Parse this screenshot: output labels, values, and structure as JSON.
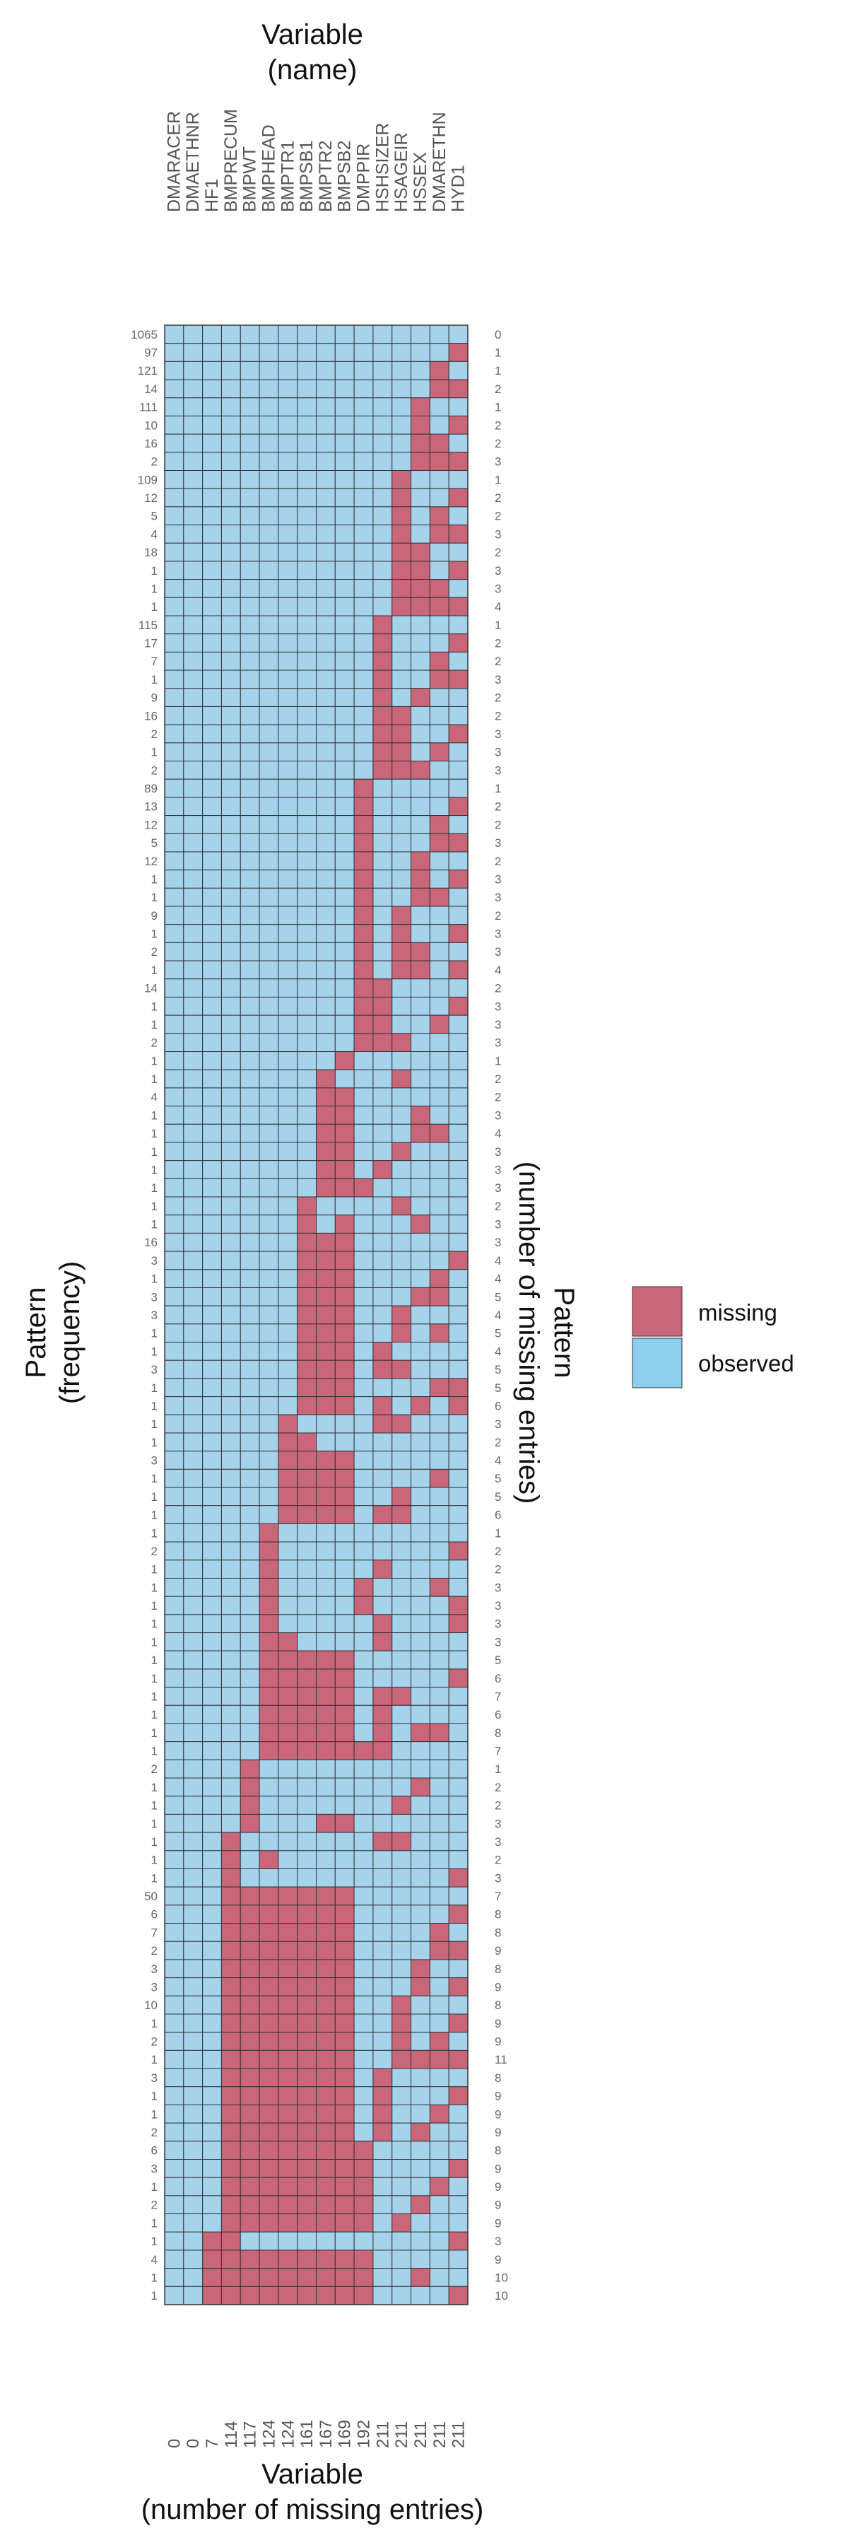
{
  "chart_data": {
    "type": "heatmap",
    "colors": {
      "missing": "#c9667a",
      "observed": "#a6d3ec",
      "grid": "#333333"
    },
    "top_axis": {
      "line1": "Variable",
      "line2": "(name)"
    },
    "bottom_axis": {
      "line1": "Variable",
      "line2": "(number of missing entries)"
    },
    "left_axis": {
      "line1": "Pattern",
      "line2": "(frequency)"
    },
    "right_axis": {
      "line1": "Pattern",
      "line2": "(number of missing entries)"
    },
    "legend": {
      "placement": "right",
      "items": [
        {
          "label": "missing",
          "color": "#c9667a"
        },
        {
          "label": "observed",
          "color": "#8ecff0"
        }
      ]
    },
    "variables": [
      "DMARACER",
      "DMAETHNR",
      "HF1",
      "BMPRECUM",
      "BMPWT",
      "BMPHEAD",
      "BMPTR1",
      "BMPSB1",
      "BMPTR2",
      "BMPSB2",
      "DMPPIR",
      "HSHSIZER",
      "HSAGEIR",
      "HSSEX",
      "DMARETHN",
      "HYD1"
    ],
    "missing_counts": [
      "0",
      "0",
      "7",
      "114",
      "117",
      "124",
      "124",
      "161",
      "167",
      "169",
      "192",
      "211",
      "211",
      "211",
      "211",
      "211"
    ],
    "patterns": [
      {
        "frequency": "1065",
        "missing": "0",
        "cells": "0000000000000000"
      },
      {
        "frequency": "97",
        "missing": "1",
        "cells": "0000000000000001"
      },
      {
        "frequency": "121",
        "missing": "1",
        "cells": "0000000000000010"
      },
      {
        "frequency": "14",
        "missing": "2",
        "cells": "0000000000000011"
      },
      {
        "frequency": "111",
        "missing": "1",
        "cells": "0000000000000100"
      },
      {
        "frequency": "10",
        "missing": "2",
        "cells": "0000000000000101"
      },
      {
        "frequency": "16",
        "missing": "2",
        "cells": "0000000000000110"
      },
      {
        "frequency": "2",
        "missing": "3",
        "cells": "0000000000000111"
      },
      {
        "frequency": "109",
        "missing": "1",
        "cells": "0000000000001000"
      },
      {
        "frequency": "12",
        "missing": "2",
        "cells": "0000000000001001"
      },
      {
        "frequency": "5",
        "missing": "2",
        "cells": "0000000000001010"
      },
      {
        "frequency": "4",
        "missing": "3",
        "cells": "0000000000001011"
      },
      {
        "frequency": "18",
        "missing": "2",
        "cells": "0000000000001100"
      },
      {
        "frequency": "1",
        "missing": "3",
        "cells": "0000000000001101"
      },
      {
        "frequency": "1",
        "missing": "3",
        "cells": "0000000000001110"
      },
      {
        "frequency": "1",
        "missing": "4",
        "cells": "0000000000001111"
      },
      {
        "frequency": "115",
        "missing": "1",
        "cells": "0000000000010000"
      },
      {
        "frequency": "17",
        "missing": "2",
        "cells": "0000000000010001"
      },
      {
        "frequency": "7",
        "missing": "2",
        "cells": "0000000000010010"
      },
      {
        "frequency": "1",
        "missing": "3",
        "cells": "0000000000010011"
      },
      {
        "frequency": "9",
        "missing": "2",
        "cells": "0000000000010100"
      },
      {
        "frequency": "16",
        "missing": "2",
        "cells": "0000000000011000"
      },
      {
        "frequency": "2",
        "missing": "3",
        "cells": "0000000000011001"
      },
      {
        "frequency": "1",
        "missing": "3",
        "cells": "0000000000011010"
      },
      {
        "frequency": "2",
        "missing": "3",
        "cells": "0000000000011100"
      },
      {
        "frequency": "89",
        "missing": "1",
        "cells": "0000000000100000"
      },
      {
        "frequency": "13",
        "missing": "2",
        "cells": "0000000000100001"
      },
      {
        "frequency": "12",
        "missing": "2",
        "cells": "0000000000100010"
      },
      {
        "frequency": "5",
        "missing": "3",
        "cells": "0000000000100011"
      },
      {
        "frequency": "12",
        "missing": "2",
        "cells": "0000000000100100"
      },
      {
        "frequency": "1",
        "missing": "3",
        "cells": "0000000000100101"
      },
      {
        "frequency": "1",
        "missing": "3",
        "cells": "0000000000100110"
      },
      {
        "frequency": "9",
        "missing": "2",
        "cells": "0000000000101000"
      },
      {
        "frequency": "1",
        "missing": "3",
        "cells": "0000000000101001"
      },
      {
        "frequency": "2",
        "missing": "3",
        "cells": "0000000000101100"
      },
      {
        "frequency": "1",
        "missing": "4",
        "cells": "0000000000101101"
      },
      {
        "frequency": "14",
        "missing": "2",
        "cells": "0000000000110000"
      },
      {
        "frequency": "1",
        "missing": "3",
        "cells": "0000000000110001"
      },
      {
        "frequency": "1",
        "missing": "3",
        "cells": "0000000000110010"
      },
      {
        "frequency": "2",
        "missing": "3",
        "cells": "0000000000111000"
      },
      {
        "frequency": "1",
        "missing": "1",
        "cells": "0000000001000000"
      },
      {
        "frequency": "1",
        "missing": "2",
        "cells": "0000000010001000"
      },
      {
        "frequency": "4",
        "missing": "2",
        "cells": "0000000011000000"
      },
      {
        "frequency": "1",
        "missing": "3",
        "cells": "0000000011000100"
      },
      {
        "frequency": "1",
        "missing": "4",
        "cells": "0000000011000110"
      },
      {
        "frequency": "1",
        "missing": "3",
        "cells": "0000000011001000"
      },
      {
        "frequency": "1",
        "missing": "3",
        "cells": "0000000011010000"
      },
      {
        "frequency": "1",
        "missing": "3",
        "cells": "0000000011100000"
      },
      {
        "frequency": "1",
        "missing": "2",
        "cells": "0000000100001000"
      },
      {
        "frequency": "1",
        "missing": "3",
        "cells": "0000000101000100"
      },
      {
        "frequency": "16",
        "missing": "3",
        "cells": "0000000111000000"
      },
      {
        "frequency": "3",
        "missing": "4",
        "cells": "0000000111000001"
      },
      {
        "frequency": "1",
        "missing": "4",
        "cells": "0000000111000010"
      },
      {
        "frequency": "3",
        "missing": "5",
        "cells": "0000000111000110"
      },
      {
        "frequency": "3",
        "missing": "4",
        "cells": "0000000111001000"
      },
      {
        "frequency": "1",
        "missing": "5",
        "cells": "0000000111001010"
      },
      {
        "frequency": "1",
        "missing": "4",
        "cells": "0000000111010000"
      },
      {
        "frequency": "3",
        "missing": "5",
        "cells": "0000000111011000"
      },
      {
        "frequency": "1",
        "missing": "5",
        "cells": "0000000111000011"
      },
      {
        "frequency": "1",
        "missing": "6",
        "cells": "0000000111010101"
      },
      {
        "frequency": "1",
        "missing": "3",
        "cells": "0000001000011000"
      },
      {
        "frequency": "1",
        "missing": "2",
        "cells": "0000001100000000"
      },
      {
        "frequency": "3",
        "missing": "4",
        "cells": "0000001111000000"
      },
      {
        "frequency": "1",
        "missing": "5",
        "cells": "0000001111000010"
      },
      {
        "frequency": "1",
        "missing": "5",
        "cells": "0000001111001000"
      },
      {
        "frequency": "1",
        "missing": "6",
        "cells": "0000001111011000"
      },
      {
        "frequency": "1",
        "missing": "1",
        "cells": "0000010000000000"
      },
      {
        "frequency": "2",
        "missing": "2",
        "cells": "0000010000000001"
      },
      {
        "frequency": "1",
        "missing": "2",
        "cells": "0000010000010000"
      },
      {
        "frequency": "1",
        "missing": "3",
        "cells": "0000010000100010"
      },
      {
        "frequency": "1",
        "missing": "3",
        "cells": "0000010000100001"
      },
      {
        "frequency": "1",
        "missing": "3",
        "cells": "0000010000010001"
      },
      {
        "frequency": "1",
        "missing": "3",
        "cells": "0000011000010000"
      },
      {
        "frequency": "1",
        "missing": "5",
        "cells": "0000011111000000"
      },
      {
        "frequency": "1",
        "missing": "6",
        "cells": "0000011111000001"
      },
      {
        "frequency": "1",
        "missing": "7",
        "cells": "0000011111011000"
      },
      {
        "frequency": "1",
        "missing": "6",
        "cells": "0000011111010000"
      },
      {
        "frequency": "1",
        "missing": "8",
        "cells": "0000011111010110"
      },
      {
        "frequency": "1",
        "missing": "7",
        "cells": "0000011111110000"
      },
      {
        "frequency": "2",
        "missing": "1",
        "cells": "0000100000000000"
      },
      {
        "frequency": "1",
        "missing": "2",
        "cells": "0000100000000100"
      },
      {
        "frequency": "1",
        "missing": "2",
        "cells": "0000100000001000"
      },
      {
        "frequency": "1",
        "missing": "3",
        "cells": "0000100011000000"
      },
      {
        "frequency": "1",
        "missing": "3",
        "cells": "0001000000011000"
      },
      {
        "frequency": "1",
        "missing": "2",
        "cells": "0001010000000000"
      },
      {
        "frequency": "1",
        "missing": "3",
        "cells": "0001000000000001"
      },
      {
        "frequency": "50",
        "missing": "7",
        "cells": "0001111111000000"
      },
      {
        "frequency": "6",
        "missing": "8",
        "cells": "0001111111000001"
      },
      {
        "frequency": "7",
        "missing": "8",
        "cells": "0001111111000010"
      },
      {
        "frequency": "2",
        "missing": "9",
        "cells": "0001111111000011"
      },
      {
        "frequency": "3",
        "missing": "8",
        "cells": "0001111111000100"
      },
      {
        "frequency": "3",
        "missing": "9",
        "cells": "0001111111000101"
      },
      {
        "frequency": "10",
        "missing": "8",
        "cells": "0001111111001000"
      },
      {
        "frequency": "1",
        "missing": "9",
        "cells": "0001111111001001"
      },
      {
        "frequency": "2",
        "missing": "9",
        "cells": "0001111111001010"
      },
      {
        "frequency": "1",
        "missing": "11",
        "cells": "0001111111001111"
      },
      {
        "frequency": "3",
        "missing": "8",
        "cells": "0001111111010000"
      },
      {
        "frequency": "1",
        "missing": "9",
        "cells": "0001111111010001"
      },
      {
        "frequency": "1",
        "missing": "9",
        "cells": "0001111111010010"
      },
      {
        "frequency": "2",
        "missing": "9",
        "cells": "0001111111010100"
      },
      {
        "frequency": "6",
        "missing": "8",
        "cells": "0001111111100000"
      },
      {
        "frequency": "3",
        "missing": "9",
        "cells": "0001111111100001"
      },
      {
        "frequency": "1",
        "missing": "9",
        "cells": "0001111111100010"
      },
      {
        "frequency": "2",
        "missing": "9",
        "cells": "0001111111100100"
      },
      {
        "frequency": "1",
        "missing": "9",
        "cells": "0001111111101000"
      },
      {
        "frequency": "1",
        "missing": "3",
        "cells": "0011000000000001"
      },
      {
        "frequency": "4",
        "missing": "9",
        "cells": "0011111111100000"
      },
      {
        "frequency": "1",
        "missing": "10",
        "cells": "0011111111100100"
      },
      {
        "frequency": "1",
        "missing": "10",
        "cells": "0011111111100001"
      }
    ]
  }
}
